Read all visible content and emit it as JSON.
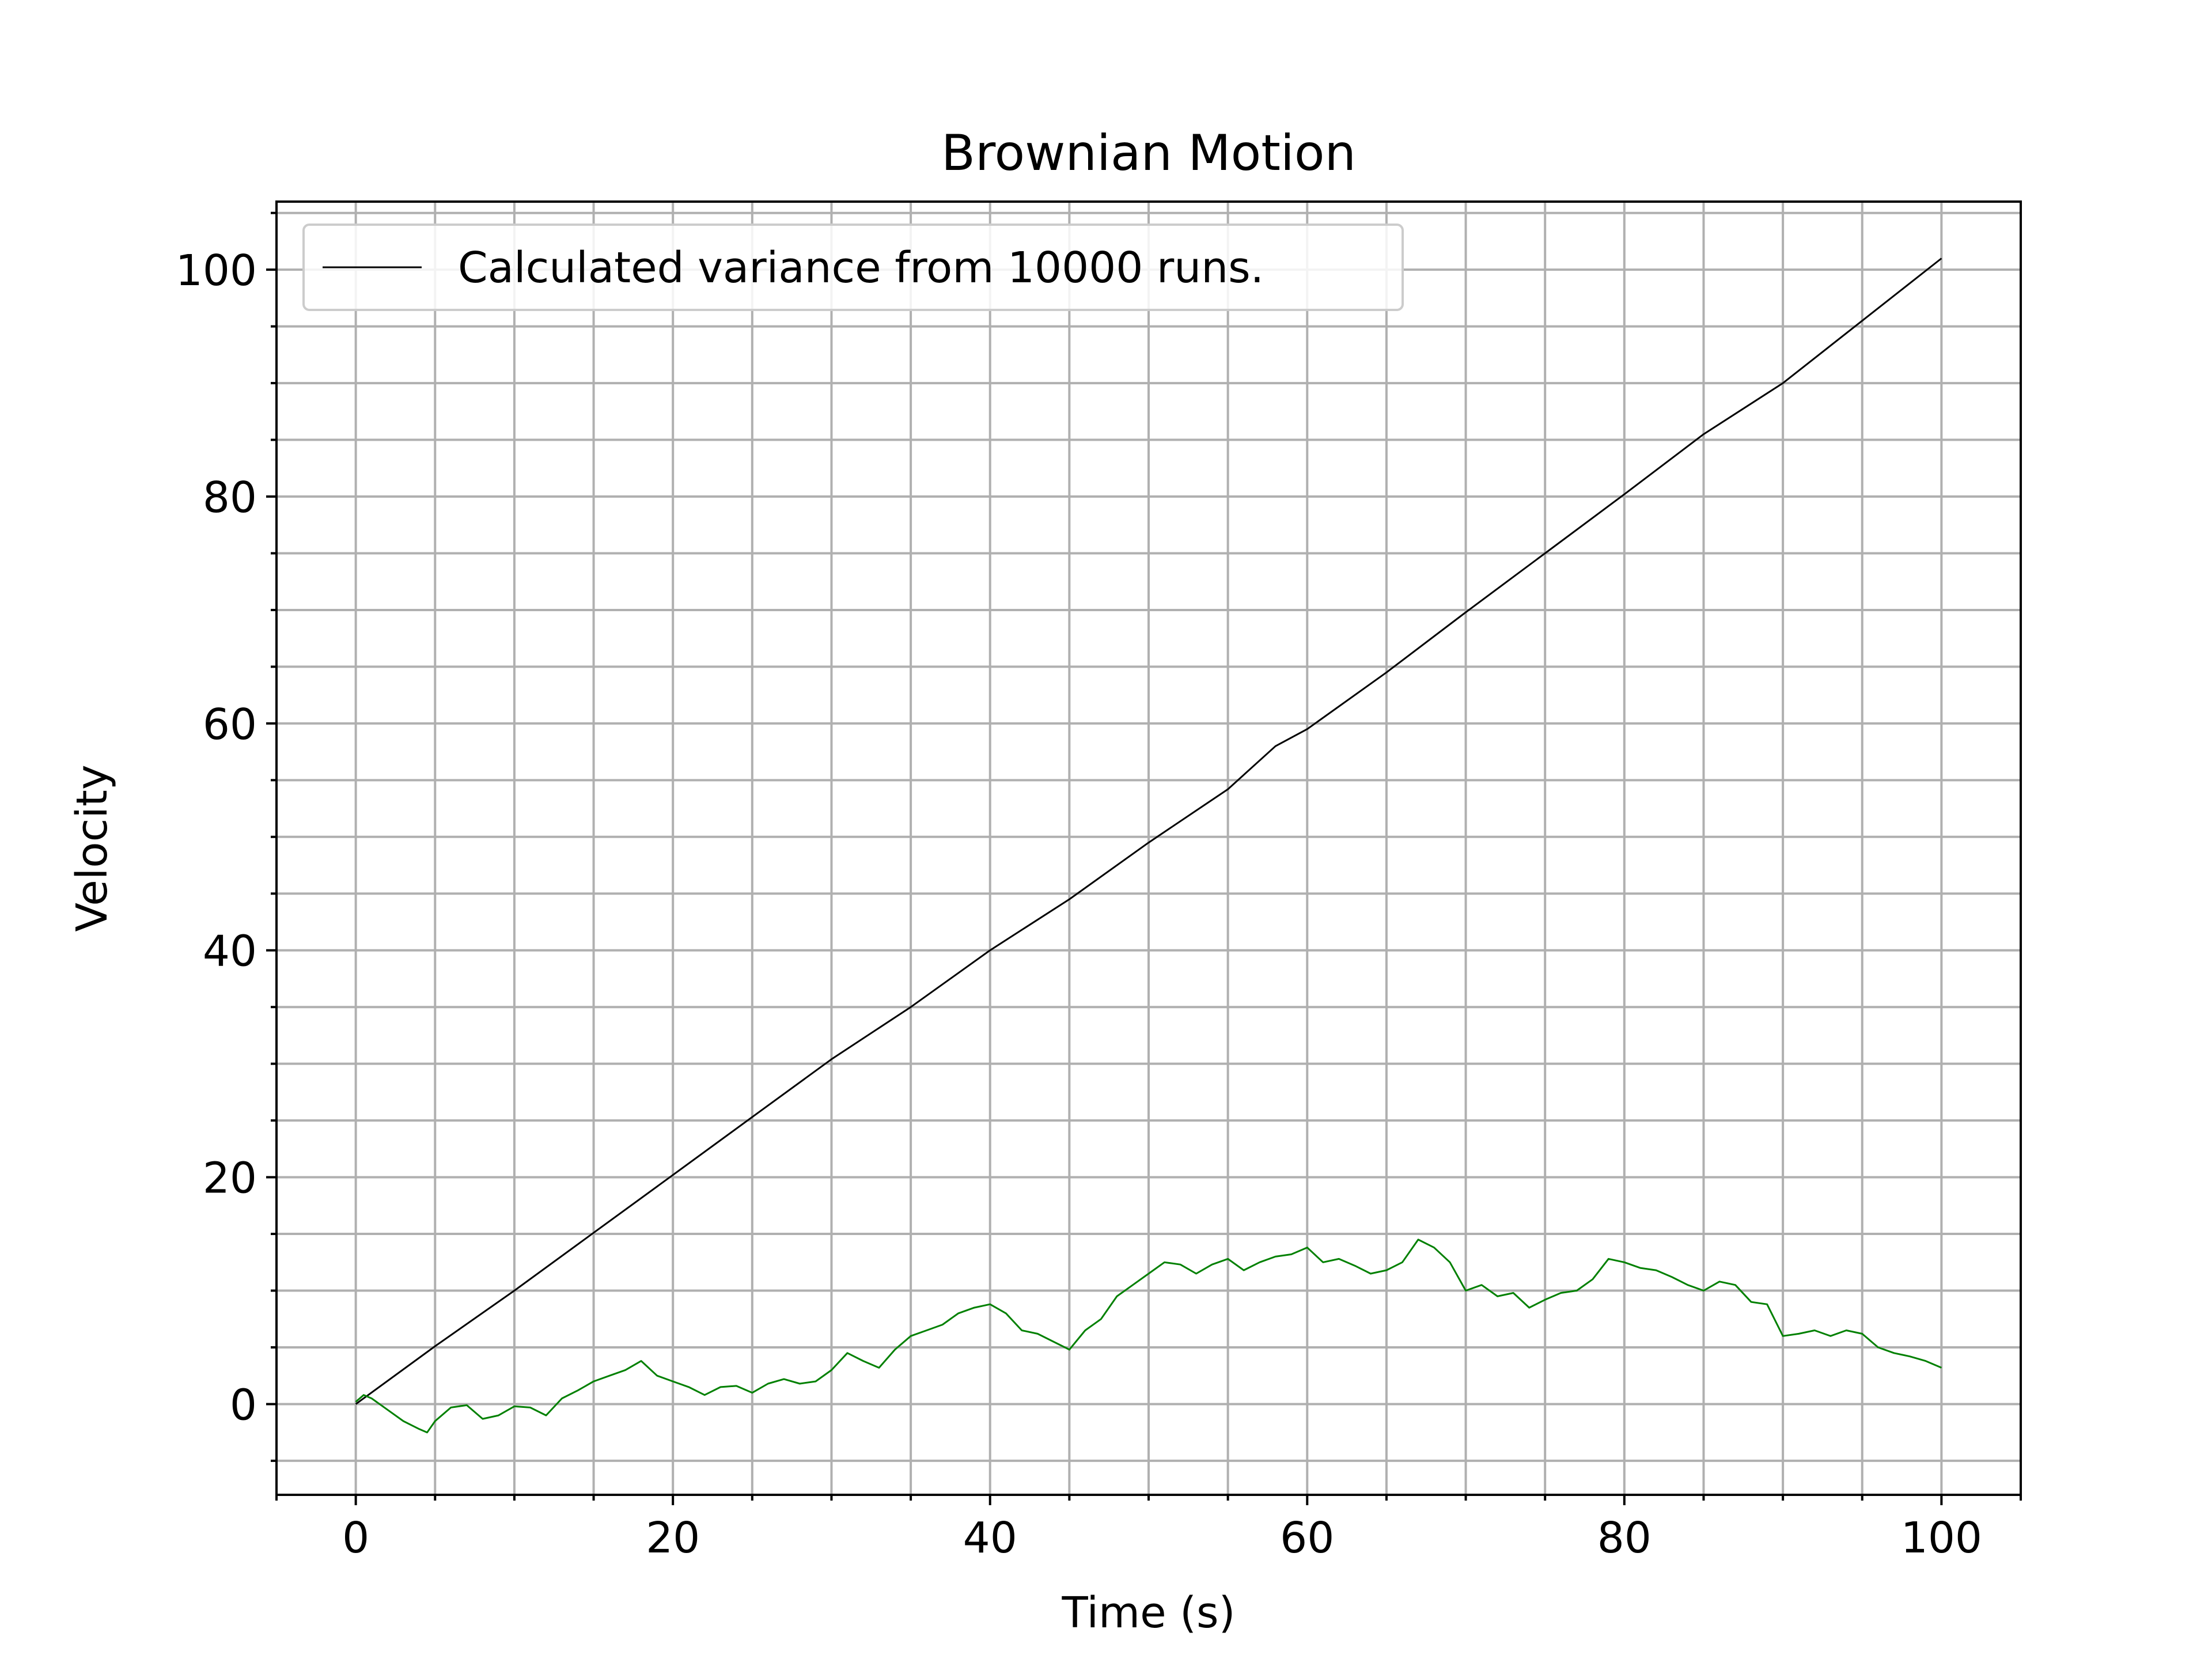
{
  "chart_data": {
    "type": "line",
    "title": "Brownian Motion",
    "xlabel": "Time (s)",
    "ylabel": "Velocity",
    "xlim": [
      -5,
      105
    ],
    "ylim": [
      -8,
      106
    ],
    "xticks": [
      0,
      20,
      40,
      60,
      80,
      100
    ],
    "yticks": [
      0,
      20,
      40,
      60,
      80,
      100
    ],
    "xtick_labels": [
      "0",
      "20",
      "40",
      "60",
      "80",
      "100"
    ],
    "ytick_labels": [
      "0",
      "20",
      "40",
      "60",
      "80",
      "100"
    ],
    "x_minor_step": 5,
    "y_minor_step": 5,
    "grid": "major and minor",
    "legend_position": "top-left",
    "series": [
      {
        "name": "Calculated variance from 10000 runs.",
        "color": "#000000",
        "x": [
          0,
          5,
          10,
          15,
          20,
          25,
          30,
          35,
          40,
          45,
          50,
          55,
          58,
          60,
          65,
          70,
          75,
          80,
          85,
          90,
          95,
          100
        ],
        "y": [
          0,
          5.1,
          10.0,
          15.1,
          20.2,
          25.3,
          30.4,
          35.0,
          40.0,
          44.5,
          49.5,
          54.2,
          58.0,
          59.5,
          64.5,
          69.8,
          75.0,
          80.2,
          85.5,
          90.0,
          95.5,
          101.0
        ]
      },
      {
        "name": "",
        "color": "#008000",
        "x": [
          0,
          0.5,
          1,
          2,
          3,
          4,
          4.5,
          5,
          6,
          7,
          8,
          9,
          10,
          11,
          12,
          13,
          14,
          15,
          16,
          17,
          18,
          19,
          20,
          21,
          22,
          23,
          24,
          25,
          26,
          27,
          28,
          29,
          30,
          31,
          32,
          33,
          34,
          35,
          36,
          37,
          38,
          39,
          40,
          41,
          42,
          43,
          44,
          45,
          46,
          47,
          48,
          49,
          50,
          51,
          52,
          53,
          54,
          55,
          56,
          57,
          58,
          59,
          60,
          61,
          62,
          63,
          64,
          65,
          66,
          67,
          68,
          69,
          70,
          71,
          72,
          73,
          74,
          75,
          76,
          77,
          78,
          79,
          80,
          81,
          82,
          83,
          84,
          85,
          86,
          87,
          88,
          89,
          90,
          91,
          92,
          93,
          94,
          95,
          96,
          97,
          98,
          99,
          100
        ],
        "y": [
          0.2,
          0.8,
          0.5,
          -0.5,
          -1.5,
          -2.2,
          -2.5,
          -1.5,
          -0.3,
          -0.1,
          -1.3,
          -1.0,
          -0.2,
          -0.3,
          -1.0,
          0.5,
          1.2,
          2.0,
          2.5,
          3.0,
          3.8,
          2.5,
          2.0,
          1.5,
          0.8,
          1.5,
          1.6,
          1.0,
          1.8,
          2.2,
          1.8,
          2.0,
          3.0,
          4.5,
          3.8,
          3.2,
          4.8,
          6.0,
          6.5,
          7.0,
          8.0,
          8.5,
          8.8,
          8.0,
          6.5,
          6.2,
          5.5,
          4.8,
          6.5,
          7.5,
          9.5,
          10.5,
          11.5,
          12.5,
          12.3,
          11.5,
          12.3,
          12.8,
          11.8,
          12.5,
          13.0,
          13.2,
          13.8,
          12.5,
          12.8,
          12.2,
          11.5,
          11.8,
          12.5,
          14.5,
          13.8,
          12.5,
          10.0,
          10.5,
          9.5,
          9.8,
          8.5,
          9.2,
          9.8,
          10.0,
          11.0,
          12.8,
          12.5,
          12.0,
          11.8,
          11.2,
          10.5,
          10.0,
          10.8,
          10.5,
          9.0,
          8.8,
          6.0,
          6.2,
          6.5,
          6.0,
          6.5,
          6.2,
          5.0,
          4.5,
          4.2,
          3.8,
          3.2
        ]
      }
    ]
  }
}
